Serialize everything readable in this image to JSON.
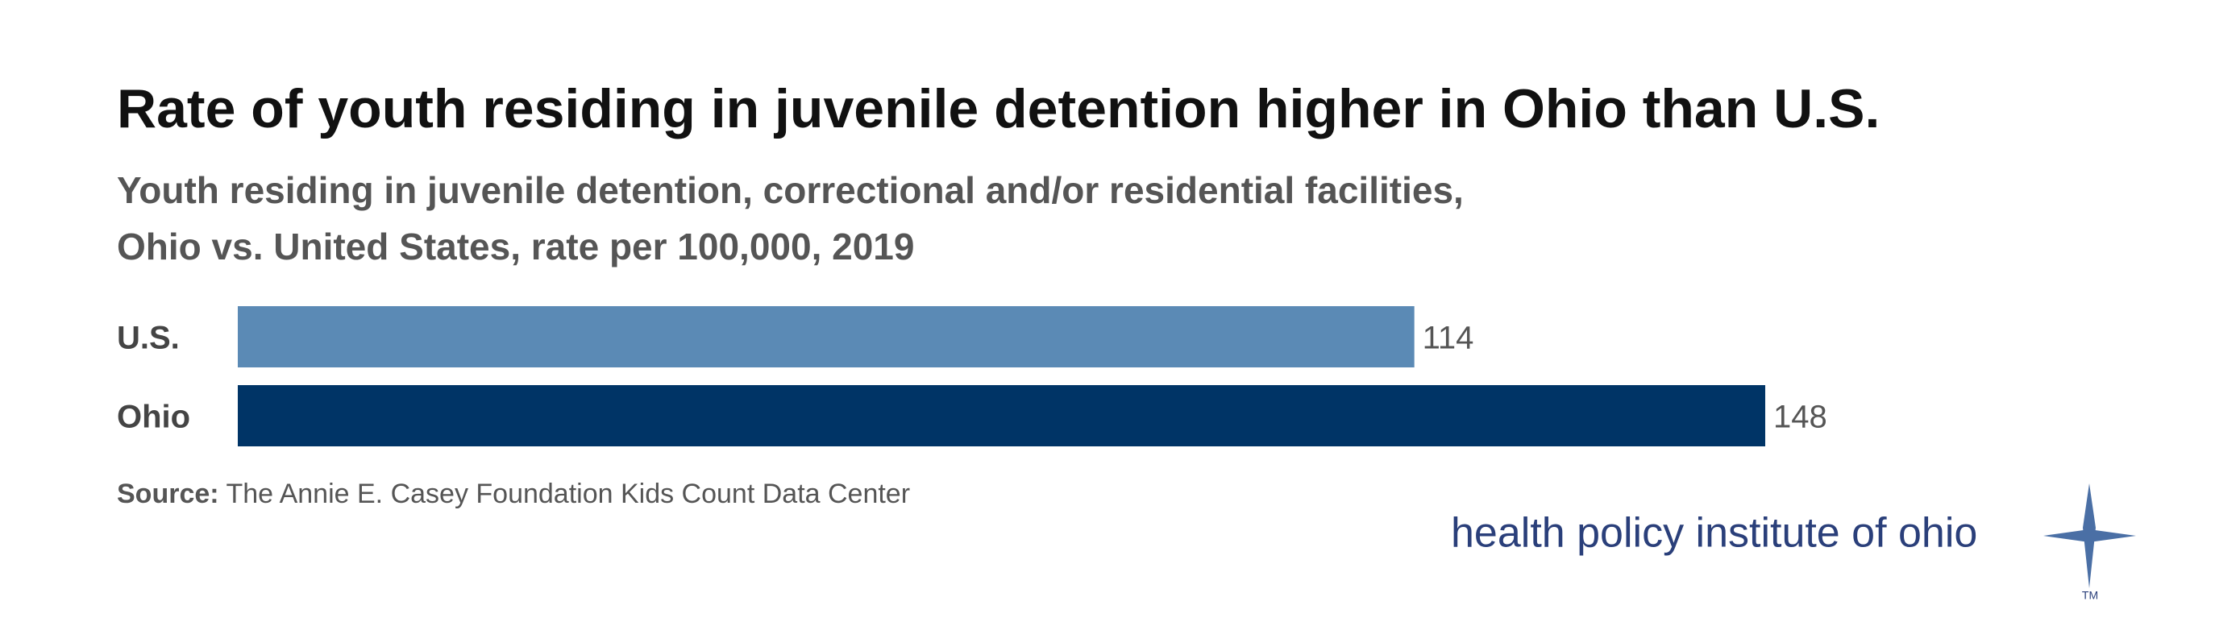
{
  "chart_data": {
    "type": "bar",
    "orientation": "horizontal",
    "title": "Rate of youth residing in juvenile detention higher in Ohio than U.S.",
    "subtitle": [
      "Youth residing in juvenile detention, correctional and/or residential facilities,",
      "Ohio vs. United States, rate per 100,000, 2019"
    ],
    "categories": [
      "U.S.",
      "Ohio"
    ],
    "values": [
      114,
      148
    ],
    "colors": [
      "#5b8ab5",
      "#003466"
    ],
    "source_label": "Source:",
    "source": "The Annie E. Casey Foundation Kids Count Data Center"
  },
  "logo": {
    "text": "health policy institute of ohio",
    "mark": "TM"
  }
}
